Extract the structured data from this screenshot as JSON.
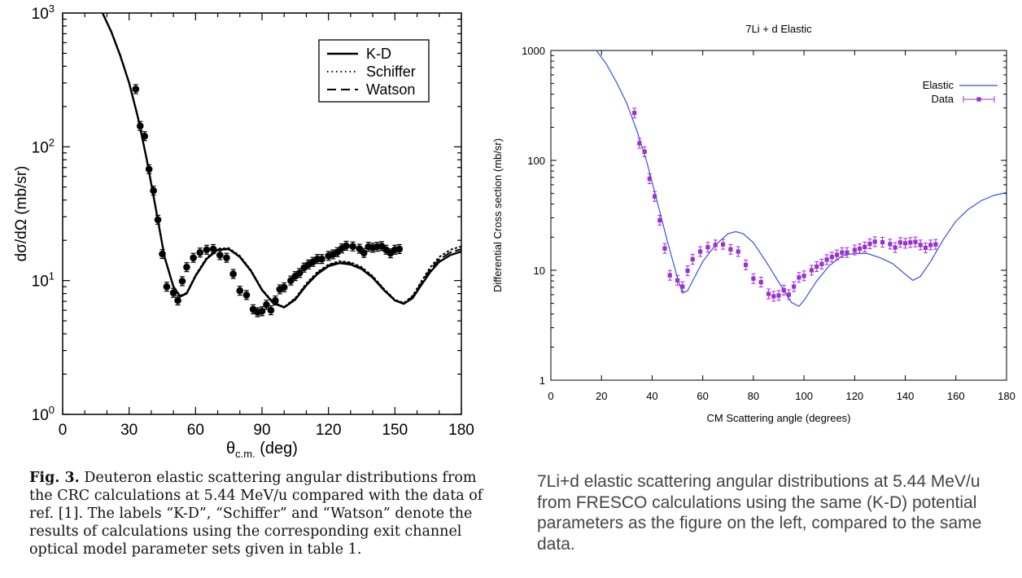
{
  "left_caption": {
    "fig_label": "Fig. 3.",
    "text": "Deuteron elastic scattering angular distributions from the CRC calculations at 5.44 MeV/u compared with the data of ref. [1]. The labels “K-D”, “Schiffer” and “Watson” denote the results of calculations using the corresponding exit channel optical model parameter sets given in table 1."
  },
  "right_caption": {
    "text": "7Li+d elastic scattering angular distributions at 5.44 MeV/u from FRESCO calculations using the same (K-D) potential parameters as the figure on the left, compared to the same data."
  },
  "chart_data": [
    {
      "type": "line",
      "title": "",
      "xlabel": "θc.m. (deg)",
      "ylabel": "dσ/dΩ (mb/sr)",
      "xlim": [
        0,
        180
      ],
      "ylim": [
        1,
        1000
      ],
      "yscale": "log",
      "xticks": [
        0,
        30,
        60,
        90,
        120,
        150,
        180
      ],
      "yticks": [
        1,
        10,
        100,
        1000
      ],
      "ytick_labels": [
        "10^0",
        "10^1",
        "10^2",
        "10^3"
      ],
      "legend_position": "top-right",
      "grid": false,
      "series": [
        {
          "name": "K-D",
          "style": "solid",
          "x": [
            18,
            22,
            26,
            30,
            34,
            38,
            42,
            46,
            50,
            53,
            56,
            60,
            65,
            70,
            75,
            80,
            85,
            90,
            95,
            100,
            105,
            110,
            115,
            120,
            125,
            130,
            135,
            140,
            145,
            150,
            154,
            158,
            162,
            166,
            170,
            175,
            180
          ],
          "y": [
            1000,
            720,
            480,
            300,
            165,
            80,
            35,
            15,
            9,
            7.6,
            8,
            10.8,
            14.5,
            17,
            17.2,
            15,
            11.8,
            8.5,
            6.8,
            6.3,
            7.2,
            9.2,
            11.2,
            12.8,
            13.5,
            13.2,
            12.2,
            10.5,
            8.5,
            7.1,
            6.7,
            7.4,
            9.3,
            11.6,
            13.8,
            15.5,
            16.5
          ]
        },
        {
          "name": "Schiffer",
          "style": "dotted",
          "x": [
            18,
            22,
            26,
            30,
            34,
            38,
            42,
            46,
            50,
            53,
            56,
            60,
            65,
            70,
            75,
            80,
            85,
            90,
            95,
            100,
            105,
            110,
            115,
            120,
            125,
            130,
            135,
            140,
            145,
            150,
            154,
            158,
            162,
            166,
            170,
            175,
            180
          ],
          "y": [
            1000,
            725,
            485,
            302,
            167,
            81,
            35.5,
            15.2,
            9.1,
            7.7,
            8.1,
            11,
            14.8,
            17.3,
            17.5,
            15.3,
            12,
            8.6,
            6.9,
            6.35,
            7.4,
            9.5,
            11.6,
            13.2,
            14,
            13.7,
            12.6,
            10.8,
            8.7,
            7.2,
            6.8,
            7.7,
            9.9,
            12.6,
            15,
            17,
            18
          ]
        },
        {
          "name": "Watson",
          "style": "dashed",
          "x": [
            18,
            22,
            26,
            30,
            34,
            38,
            42,
            46,
            50,
            53,
            56,
            60,
            65,
            70,
            75,
            80,
            85,
            90,
            95,
            100,
            105,
            110,
            115,
            120,
            125,
            130,
            135,
            140,
            145,
            150,
            154,
            158,
            162,
            166,
            170,
            175,
            180
          ],
          "y": [
            1000,
            722,
            482,
            301,
            166,
            80.5,
            35.2,
            15.1,
            9.05,
            7.65,
            8.05,
            10.9,
            14.6,
            17.1,
            17.3,
            15.1,
            11.9,
            8.55,
            6.85,
            6.32,
            7.3,
            9.35,
            11.4,
            13,
            13.75,
            13.45,
            12.4,
            10.65,
            8.6,
            7.15,
            6.75,
            7.55,
            9.6,
            12.1,
            14.4,
            16.2,
            17.2
          ]
        },
        {
          "name": "",
          "type": "scatter",
          "marker": "circle",
          "errorbars": true,
          "x": [
            33,
            35,
            37,
            39,
            41,
            43,
            45,
            47,
            50,
            52,
            54,
            56,
            59,
            62,
            65,
            68,
            71,
            74,
            77,
            80,
            83,
            86,
            88,
            90,
            92,
            94,
            96,
            98,
            100,
            103,
            105,
            107,
            109,
            111,
            113,
            115,
            117,
            120,
            122,
            124,
            126,
            128,
            131,
            134,
            136,
            138,
            140,
            142,
            144,
            146,
            148,
            150,
            152
          ],
          "y": [
            270,
            143,
            120,
            68,
            47,
            28.5,
            15.8,
            9,
            8.1,
            7.1,
            9.9,
            12.6,
            14.8,
            16.2,
            17,
            17.2,
            15.5,
            14.8,
            11.2,
            8.4,
            7.8,
            6.1,
            5.8,
            5.9,
            6.6,
            6,
            7.1,
            8.6,
            8.9,
            10,
            10.8,
            11.4,
            12.5,
            13.2,
            13.8,
            14.5,
            14.5,
            15.3,
            15.7,
            16.3,
            17.4,
            18.2,
            18,
            17.3,
            16.1,
            17.9,
            17.6,
            17.9,
            18.1,
            17,
            16,
            17,
            17.2
          ]
        }
      ]
    },
    {
      "type": "line",
      "title": "7Li + d Elastic",
      "xlabel": "CM Scattering angle (degrees)",
      "ylabel": "Differential Cross section (mb/sr)",
      "xlim": [
        0,
        180
      ],
      "ylim": [
        1,
        1000
      ],
      "yscale": "log",
      "xticks": [
        0,
        20,
        40,
        60,
        80,
        100,
        120,
        140,
        160,
        180
      ],
      "yticks": [
        1,
        10,
        100,
        1000
      ],
      "ytick_labels": [
        "1",
        "10",
        "100",
        "1000"
      ],
      "legend_position": "top-right",
      "grid": false,
      "colors": {
        "line": "#3b4ee8",
        "points": "#9b2fd6"
      },
      "series": [
        {
          "name": "Elastic",
          "style": "solid",
          "x": [
            18,
            22,
            26,
            30,
            34,
            38,
            42,
            46,
            50,
            52,
            54,
            56,
            60,
            65,
            70,
            73,
            76,
            80,
            85,
            90,
            95,
            98,
            100,
            105,
            110,
            115,
            120,
            125,
            130,
            135,
            140,
            143,
            146,
            150,
            155,
            160,
            165,
            170,
            175,
            180
          ],
          "y": [
            1000,
            750,
            510,
            330,
            185,
            95,
            42,
            18.5,
            8.5,
            6.2,
            6.5,
            8,
            12,
            17,
            21.5,
            22.5,
            21.5,
            17.8,
            12,
            7.8,
            5.1,
            4.7,
            5.3,
            8,
            11,
            13.5,
            14.3,
            14.2,
            13,
            11.5,
            9.2,
            8.1,
            8.8,
            12,
            19,
            28,
            36,
            43,
            48,
            51
          ]
        },
        {
          "name": "Data",
          "type": "scatter",
          "marker": "square",
          "errorbars": true,
          "x": [
            33,
            35,
            37,
            39,
            41,
            43,
            45,
            47,
            50,
            52,
            54,
            56,
            59,
            62,
            65,
            68,
            71,
            74,
            77,
            80,
            83,
            86,
            88,
            90,
            92,
            94,
            96,
            98,
            100,
            103,
            105,
            107,
            109,
            111,
            113,
            115,
            117,
            120,
            122,
            124,
            126,
            128,
            131,
            134,
            136,
            138,
            140,
            142,
            144,
            146,
            148,
            150,
            152
          ],
          "y": [
            270,
            143,
            120,
            68,
            47,
            28.5,
            15.8,
            9,
            8.1,
            7.1,
            9.9,
            12.6,
            14.8,
            16.2,
            17,
            17.2,
            15.5,
            14.8,
            11.2,
            8.4,
            7.8,
            6.1,
            5.8,
            5.9,
            6.6,
            6,
            7.1,
            8.6,
            8.9,
            10,
            10.8,
            11.4,
            12.5,
            13.2,
            13.8,
            14.5,
            14.5,
            15.3,
            15.7,
            16.3,
            17.4,
            18.2,
            18,
            17.3,
            16.1,
            17.9,
            17.6,
            17.9,
            18.1,
            17,
            16,
            17,
            17.2
          ]
        }
      ]
    }
  ]
}
